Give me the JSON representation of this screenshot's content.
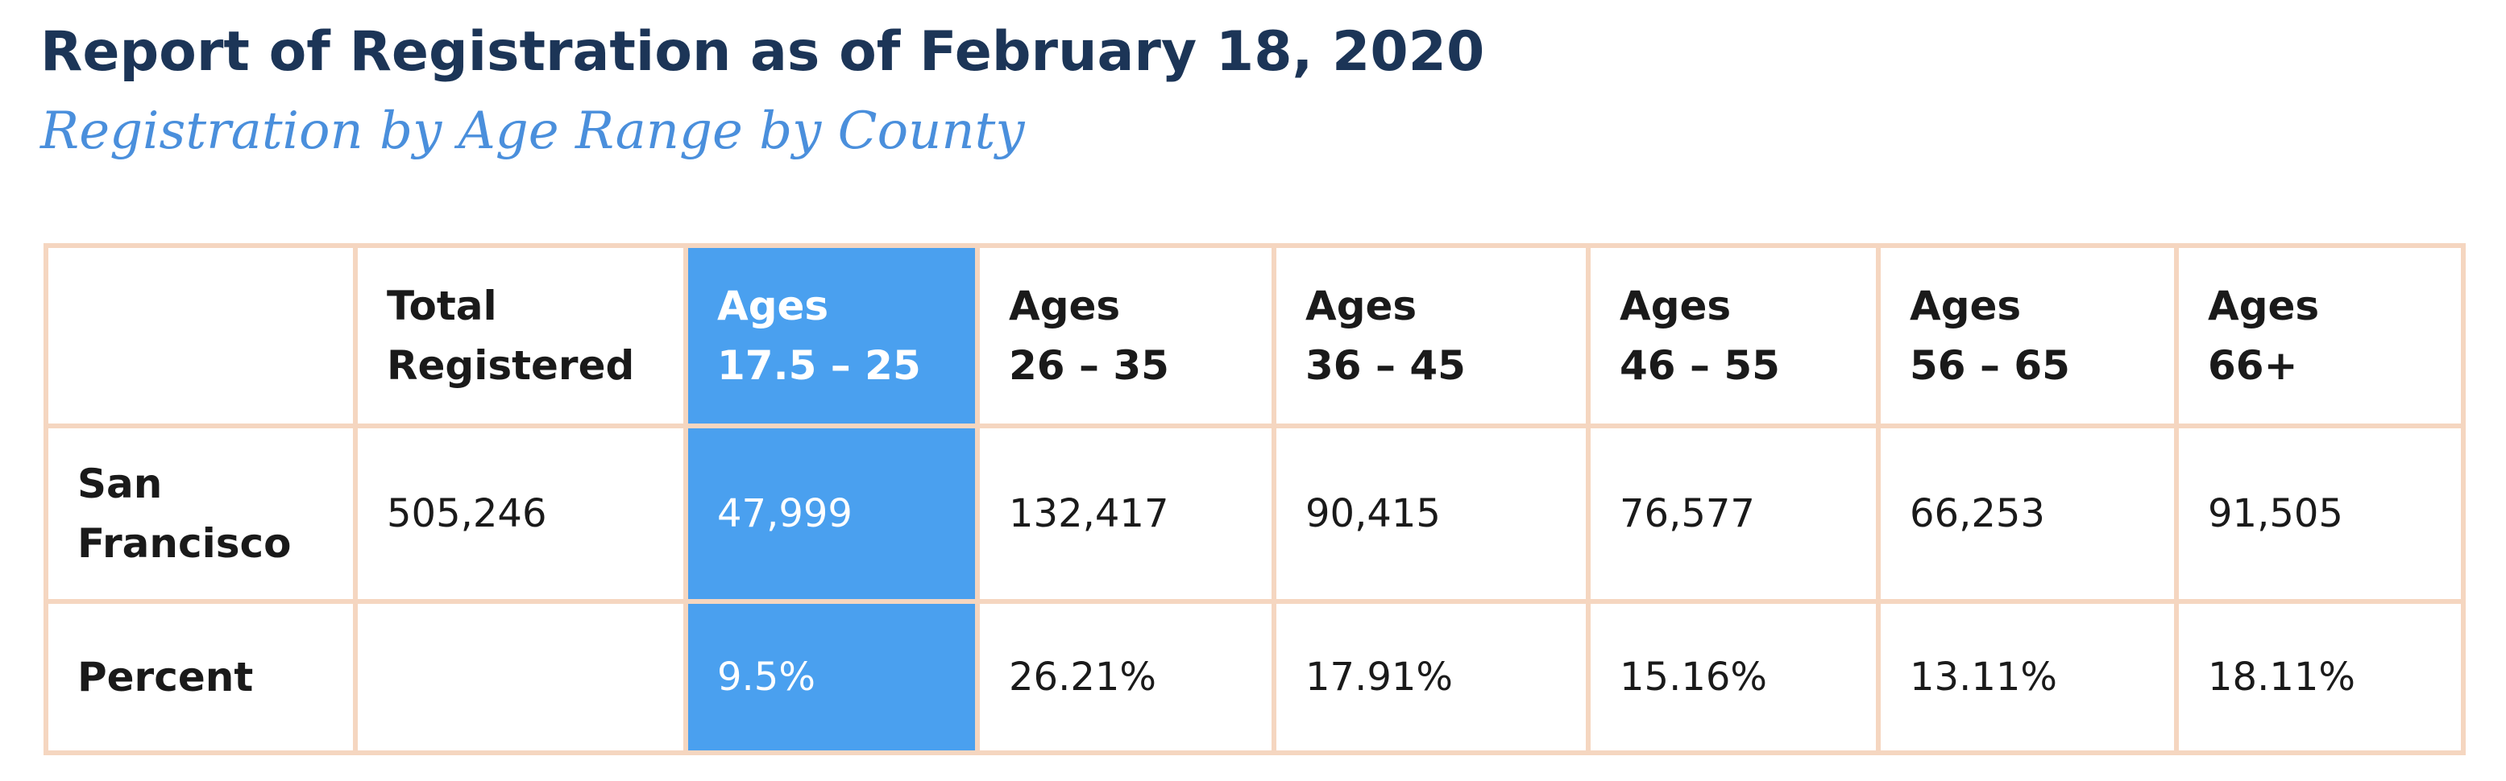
{
  "chart_data": {
    "type": "table",
    "title": "Report of Registration as of February 18, 2020",
    "subtitle": "Registration by Age Range by County",
    "columns": [
      {
        "line1": "",
        "line2": ""
      },
      {
        "line1": "Total",
        "line2": "Registered"
      },
      {
        "line1": "Ages",
        "line2": "17.5 – 25"
      },
      {
        "line1": "Ages",
        "line2": "26 – 35"
      },
      {
        "line1": "Ages",
        "line2": "36 – 45"
      },
      {
        "line1": "Ages",
        "line2": "46 – 55"
      },
      {
        "line1": "Ages",
        "line2": "56 – 65"
      },
      {
        "line1": "Ages",
        "line2": "66+"
      }
    ],
    "rows": [
      {
        "label_line1": "San",
        "label_line2": "Francisco",
        "cells": [
          "505,246",
          "47,999",
          "132,417",
          "90,415",
          "76,577",
          "66,253",
          "91,505"
        ]
      },
      {
        "label_line1": "Percent",
        "label_line2": "",
        "cells": [
          "",
          "9.5%",
          "26.21%",
          "17.91%",
          "15.16%",
          "13.11%",
          "18.11%"
        ]
      }
    ],
    "highlight": {
      "column_index": 2,
      "color": "#4aa0ef"
    },
    "border_color": "#f5d6c0",
    "title_color": "#1c3557",
    "subtitle_color": "#4a8fdc"
  }
}
